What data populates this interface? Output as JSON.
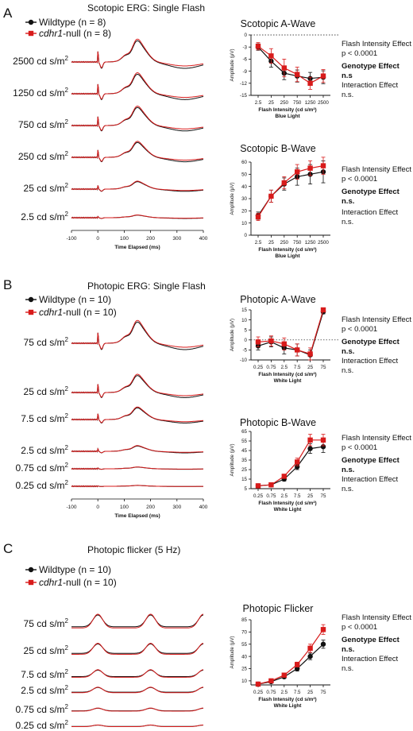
{
  "colors": {
    "wt": "#111111",
    "null": "#d81b1b"
  },
  "panels": [
    {
      "letter": "A",
      "title": "Scotopic ERG: Single Flash",
      "legend": [
        {
          "key": "wt",
          "pre": "Wildtype (n = 8)",
          "italic": "",
          "post": ""
        },
        {
          "key": "null",
          "pre": "",
          "italic": "cdhr1",
          "post": "-null (n = 8)"
        }
      ],
      "traces": {
        "rows": [
          {
            "label": "2500 cd s/m",
            "amp": 1.0
          },
          {
            "label": "1250 cd s/m",
            "amp": 0.92
          },
          {
            "label": "750 cd s/m",
            "amp": 0.85
          },
          {
            "label": "250 cd s/m",
            "amp": 0.7
          },
          {
            "label": "25 cd s/m",
            "amp": 0.35
          },
          {
            "label": "2.5 cd s/m",
            "amp": 0.12
          }
        ],
        "x_ticks": [
          "-100",
          "0",
          "100",
          "200",
          "300",
          "400"
        ],
        "x_label": "Time Elapsed (ms)"
      }
    },
    {
      "letter": "B",
      "title": "Photopic ERG: Single Flash",
      "legend": [
        {
          "key": "wt",
          "pre": "Wildtype (n = 10)",
          "italic": "",
          "post": ""
        },
        {
          "key": "null",
          "pre": "",
          "italic": "cdhr1",
          "post": "-null (n = 10)"
        }
      ],
      "traces": {
        "rows": [
          {
            "label": "75 cd s/m",
            "amp": 1.0
          },
          {
            "label": "25 cd s/m",
            "amp": 0.8
          },
          {
            "label": "7.5 cd s/m",
            "amp": 0.55
          },
          {
            "label": "2.5 cd s/m",
            "amp": 0.25
          },
          {
            "label": "0.75 cd s/m",
            "amp": 0.08
          },
          {
            "label": "0.25 cd s/m",
            "amp": 0.04
          }
        ],
        "x_ticks": [
          "-100",
          "0",
          "100",
          "200",
          "300",
          "400"
        ],
        "x_label": "Time Elapsed (ms)"
      }
    },
    {
      "letter": "C",
      "title": "Photopic flicker (5 Hz)",
      "legend": [
        {
          "key": "wt",
          "pre": "Wildtype (n = 10)",
          "italic": "",
          "post": ""
        },
        {
          "key": "null",
          "pre": "",
          "italic": "cdhr1",
          "post": "-null (n = 10)"
        }
      ],
      "traces": {
        "rows": [
          {
            "label": "75 cd s/m",
            "amp": 1.0
          },
          {
            "label": "25 cd s/m",
            "amp": 0.8
          },
          {
            "label": "7.5 cd s/m",
            "amp": 0.55
          },
          {
            "label": "2.5 cd s/m",
            "amp": 0.4
          },
          {
            "label": "0.75 cd s/m",
            "amp": 0.22
          },
          {
            "label": "0.25 cd s/m",
            "amp": 0.12
          }
        ],
        "x_ticks": [],
        "x_label": ""
      }
    }
  ],
  "chart_data": [
    {
      "type": "line",
      "title": "Scotopic A-Wave",
      "xlabel": "Flash Intensity (cd s/m²)",
      "xsublabel": "Blue Light",
      "ylabel": "Amplitude (μV)",
      "categories": [
        "2.5",
        "25",
        "250",
        "750",
        "1250",
        "2500"
      ],
      "ylim": [
        -15,
        0
      ],
      "yticks": [
        0,
        -3,
        -6,
        -9,
        -12,
        -15
      ],
      "zero_line": true,
      "series": [
        {
          "key": "wt",
          "values": [
            -3,
            -6.5,
            -9.5,
            -10.2,
            -10.8,
            -10.5
          ],
          "err": [
            0.8,
            1.5,
            1.6,
            1.5,
            1.5,
            1.6
          ]
        },
        {
          "key": "null",
          "values": [
            -2.8,
            -5.2,
            -8.2,
            -9.8,
            -12.0,
            -10.2
          ],
          "err": [
            0.9,
            1.8,
            2.2,
            1.8,
            1.5,
            1.6
          ]
        }
      ],
      "annotations": [
        {
          "line1": "Flash Intensity Effect",
          "line2": "p < 0.0001"
        },
        {
          "line1": "Genotype Effect",
          "line2": "n.s",
          "bold": true
        },
        {
          "line1": "Interaction Effect",
          "line2": "n.s."
        }
      ]
    },
    {
      "type": "line",
      "title": "Scotopic B-Wave",
      "xlabel": "Flash Intensity (cd s/m²)",
      "xsublabel": "Blue Light",
      "ylabel": "Amplitude (μV)",
      "categories": [
        "2.5",
        "25",
        "250",
        "750",
        "1250",
        "2500"
      ],
      "ylim": [
        0,
        60
      ],
      "yticks": [
        0,
        10,
        20,
        30,
        40,
        50,
        60
      ],
      "zero_line": false,
      "series": [
        {
          "key": "wt",
          "values": [
            16,
            32,
            42,
            48,
            50,
            52
          ],
          "err": [
            3,
            5,
            5,
            7,
            8,
            9
          ]
        },
        {
          "key": "null",
          "values": [
            15,
            32,
            43,
            52,
            55,
            57
          ],
          "err": [
            3,
            5,
            5,
            6,
            6,
            7
          ]
        }
      ],
      "annotations": [
        {
          "line1": "Flash Intensity Effect",
          "line2": "p < 0.0001"
        },
        {
          "line1": "Genotype Effect",
          "line2": "n.s.",
          "bold": true
        },
        {
          "line1": "Interaction Effect",
          "line2": "n.s."
        }
      ]
    },
    {
      "type": "line",
      "title": "Photopic A-Wave",
      "xlabel": "Flash Intensity (cd s/m²)",
      "xsublabel": "White Light",
      "ylabel": "Amplitude (μV)",
      "categories": [
        "0.25",
        "0.75",
        "2.5",
        "7.5",
        "25",
        "75"
      ],
      "ylim": [
        -10,
        15
      ],
      "yticks": [
        15,
        10,
        5,
        0,
        -5,
        -10
      ],
      "zero_line": true,
      "series": [
        {
          "key": "wt",
          "values": [
            -3,
            -1,
            -4,
            -5,
            -7.5,
            14
          ],
          "err": [
            2,
            2.5,
            3,
            3,
            2.5,
            1
          ]
        },
        {
          "key": "null",
          "values": [
            -1,
            -0.5,
            -2,
            -5,
            -7,
            15
          ],
          "err": [
            2.5,
            2.5,
            3,
            3,
            3,
            1
          ]
        }
      ],
      "annotations": [
        {
          "line1": "Flash Intensity Effect",
          "line2": "p < 0.0001"
        },
        {
          "line1": "Genotype Effect",
          "line2": "n.s.",
          "bold": true
        },
        {
          "line1": "Interaction Effect",
          "line2": "n.s."
        }
      ]
    },
    {
      "type": "line",
      "title": "Photopic B-Wave",
      "xlabel": "Flash Intensity (cd s/m²)",
      "xsublabel": "White Light",
      "ylabel": "Amplitude (μV)",
      "categories": [
        "0.25",
        "0.75",
        "2.5",
        "7.5",
        "25",
        "75"
      ],
      "ylim": [
        5,
        65
      ],
      "yticks": [
        5,
        15,
        25,
        35,
        45,
        55,
        65
      ],
      "zero_line": false,
      "series": [
        {
          "key": "wt",
          "values": [
            8,
            9,
            15,
            28,
            47,
            49
          ],
          "err": [
            1,
            1,
            2,
            3,
            5,
            6
          ]
        },
        {
          "key": "null",
          "values": [
            8,
            9,
            18,
            33,
            56,
            56
          ],
          "err": [
            1,
            1,
            2,
            4,
            6,
            6
          ]
        }
      ],
      "annotations": [
        {
          "line1": "Flash Intensity Effect",
          "line2": "p < 0.0001"
        },
        {
          "line1": "Genotype Effect",
          "line2": "n.s.",
          "bold": true
        },
        {
          "line1": "Interaction Effect",
          "line2": "n.s."
        }
      ]
    },
    {
      "type": "line",
      "title": "Photopic Flicker",
      "xlabel": "Flash Intensity (cd s/m²)",
      "xsublabel": "White Light",
      "ylabel": "Amplitude (μV)",
      "categories": [
        "0.25",
        "0.75",
        "2.5",
        "7.5",
        "25",
        "75"
      ],
      "ylim": [
        5,
        85
      ],
      "yticks": [
        10,
        25,
        40,
        55,
        70,
        85
      ],
      "zero_line": false,
      "series": [
        {
          "key": "wt",
          "values": [
            6,
            9,
            15,
            25,
            40,
            55
          ],
          "err": [
            0.5,
            1,
            2,
            3,
            4,
            5
          ]
        },
        {
          "key": "null",
          "values": [
            6,
            10,
            17,
            30,
            50,
            73
          ],
          "err": [
            0.5,
            1,
            2,
            3,
            5,
            6
          ]
        }
      ],
      "annotations": [
        {
          "line1": "Flash Intensity Effect",
          "line2": "p < 0.0001"
        },
        {
          "line1": "Genotype Effect",
          "line2": "n.s.",
          "bold": true
        },
        {
          "line1": "Interaction Effect",
          "line2": "n.s."
        }
      ]
    }
  ]
}
